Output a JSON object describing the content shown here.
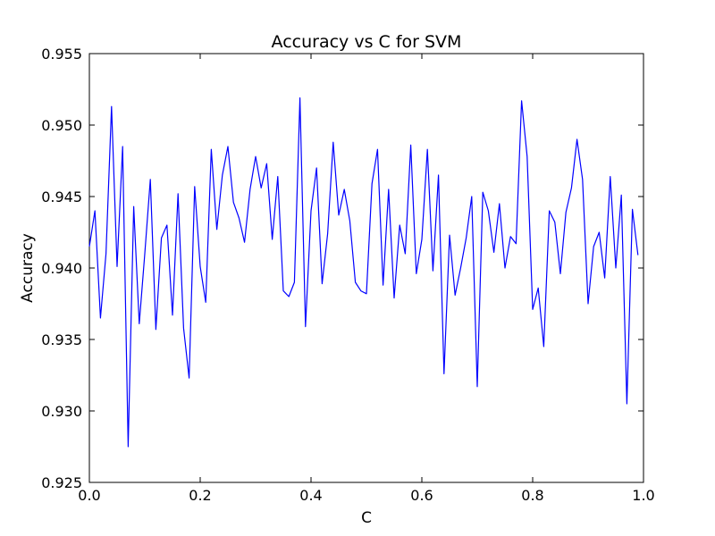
{
  "chart_data": {
    "type": "line",
    "title": "Accuracy vs C for SVM",
    "xlabel": "C",
    "ylabel": "Accuracy",
    "xlim": [
      0.0,
      1.0
    ],
    "ylim": [
      0.925,
      0.955
    ],
    "grid": false,
    "legend": "none",
    "series_color": "#0000ff",
    "xticks": [
      "0.0",
      "0.2",
      "0.4",
      "0.6",
      "0.8",
      "1.0"
    ],
    "yticks": [
      "0.925",
      "0.930",
      "0.935",
      "0.940",
      "0.945",
      "0.950",
      "0.955"
    ],
    "series": [
      {
        "x": [
          0.0,
          0.01,
          0.02,
          0.03,
          0.04,
          0.05,
          0.06,
          0.07,
          0.08,
          0.09,
          0.1,
          0.11,
          0.12,
          0.13,
          0.14,
          0.15,
          0.16,
          0.17,
          0.18,
          0.19,
          0.2,
          0.21,
          0.22,
          0.23,
          0.24,
          0.25,
          0.26,
          0.27,
          0.28,
          0.29,
          0.3,
          0.31,
          0.32,
          0.33,
          0.34,
          0.35,
          0.36,
          0.37,
          0.38,
          0.39,
          0.4,
          0.41,
          0.42,
          0.43,
          0.44,
          0.45,
          0.46,
          0.47,
          0.48,
          0.49,
          0.5,
          0.51,
          0.52,
          0.53,
          0.54,
          0.55,
          0.56,
          0.57,
          0.58,
          0.59,
          0.6,
          0.61,
          0.62,
          0.63,
          0.64,
          0.65,
          0.66,
          0.67,
          0.68,
          0.69,
          0.7,
          0.71,
          0.72,
          0.73,
          0.74,
          0.75,
          0.76,
          0.77,
          0.78,
          0.79,
          0.8,
          0.81,
          0.82,
          0.83,
          0.84,
          0.85,
          0.86,
          0.87,
          0.88,
          0.89,
          0.9,
          0.91,
          0.92,
          0.93,
          0.94,
          0.95,
          0.96,
          0.97,
          0.98,
          0.99
        ],
        "values": [
          0.9415,
          0.944,
          0.9365,
          0.941,
          0.9513,
          0.9401,
          0.9485,
          0.9275,
          0.9443,
          0.9361,
          0.941,
          0.9462,
          0.9357,
          0.9421,
          0.943,
          0.9367,
          0.9452,
          0.9358,
          0.9323,
          0.9457,
          0.9401,
          0.9376,
          0.9483,
          0.9427,
          0.9465,
          0.9485,
          0.9446,
          0.9435,
          0.9418,
          0.9455,
          0.9478,
          0.9456,
          0.9473,
          0.942,
          0.9464,
          0.9384,
          0.938,
          0.939,
          0.9519,
          0.9359,
          0.944,
          0.947,
          0.9389,
          0.9424,
          0.9488,
          0.9437,
          0.9455,
          0.9433,
          0.939,
          0.9384,
          0.9382,
          0.9459,
          0.9483,
          0.9388,
          0.9455,
          0.9379,
          0.943,
          0.941,
          0.9486,
          0.9396,
          0.942,
          0.9483,
          0.9398,
          0.9465,
          0.9326,
          0.9423,
          0.9381,
          0.94,
          0.9421,
          0.945,
          0.9317,
          0.9453,
          0.944,
          0.9411,
          0.9445,
          0.94,
          0.9422,
          0.9417,
          0.9517,
          0.9478,
          0.9371,
          0.9386,
          0.9345,
          0.944,
          0.9432,
          0.9396,
          0.9439,
          0.9456,
          0.949,
          0.9462,
          0.9375,
          0.9415,
          0.9425,
          0.9393,
          0.9464,
          0.94,
          0.9451,
          0.9305,
          0.9441,
          0.9409
        ]
      }
    ]
  }
}
